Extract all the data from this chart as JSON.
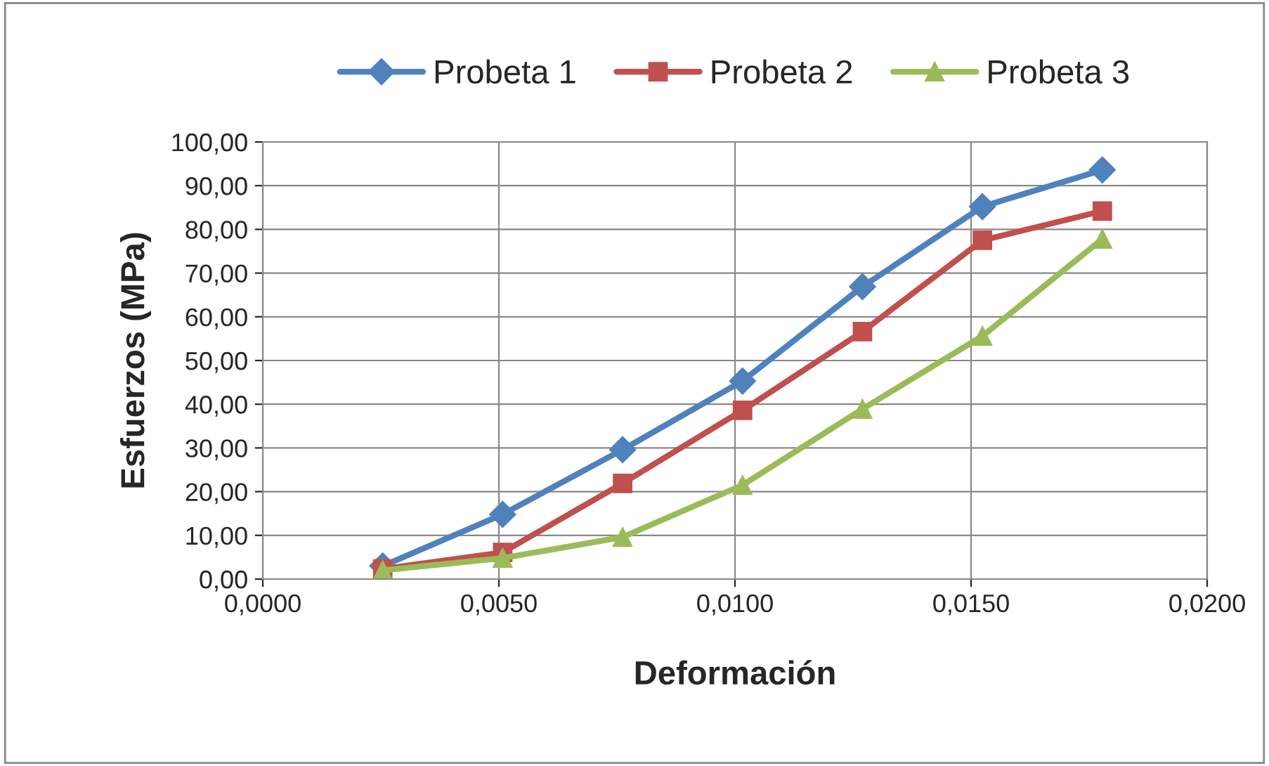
{
  "chart_data": {
    "type": "line",
    "xlabel": "Deformación",
    "ylabel": "Esfuerzos (MPa)",
    "x": [
      0.00254,
      0.00508,
      0.00762,
      0.01016,
      0.0127,
      0.01524,
      0.01778
    ],
    "series": [
      {
        "name": "Probeta 1",
        "color": "#4f81bd",
        "marker": "diamond",
        "values": [
          3,
          14.8,
          29.6,
          45.3,
          66.9,
          85.2,
          93.6
        ]
      },
      {
        "name": "Probeta 2",
        "color": "#c0504d",
        "marker": "square",
        "values": [
          2.3,
          6.1,
          21.9,
          38.6,
          56.6,
          77.5,
          84.2
        ]
      },
      {
        "name": "Probeta 3",
        "color": "#9bbb59",
        "marker": "triangle",
        "values": [
          2,
          4.8,
          9.6,
          21.5,
          38.9,
          55.6,
          77.8
        ]
      }
    ],
    "xlim": [
      0,
      0.02
    ],
    "xticks": [
      {
        "value": 0,
        "label": "0,0000"
      },
      {
        "value": 0.005,
        "label": "0,0050"
      },
      {
        "value": 0.01,
        "label": "0,0100"
      },
      {
        "value": 0.015,
        "label": "0,0150"
      },
      {
        "value": 0.02,
        "label": "0,0200"
      }
    ],
    "ylim": [
      0,
      100
    ],
    "yticks": [
      {
        "value": 0,
        "label": "0,00"
      },
      {
        "value": 10,
        "label": "10,00"
      },
      {
        "value": 20,
        "label": "20,00"
      },
      {
        "value": 30,
        "label": "30,00"
      },
      {
        "value": 40,
        "label": "40,00"
      },
      {
        "value": 50,
        "label": "50,00"
      },
      {
        "value": 60,
        "label": "60,00"
      },
      {
        "value": 70,
        "label": "70,00"
      },
      {
        "value": 80,
        "label": "80,00"
      },
      {
        "value": 90,
        "label": "90,00"
      },
      {
        "value": 100,
        "label": "100,00"
      }
    ],
    "grid": true,
    "legend": "top",
    "line_style": "solid"
  }
}
